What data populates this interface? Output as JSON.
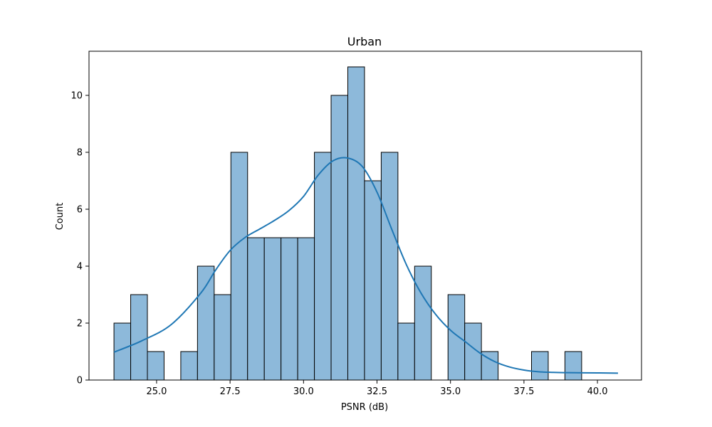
{
  "chart_data": {
    "type": "bar",
    "title": "Urban",
    "xlabel": "PSNR (dB)",
    "ylabel": "Count",
    "xlim": [
      22.7,
      41.5
    ],
    "ylim": [
      0,
      11.55
    ],
    "xticks": [
      25.0,
      27.5,
      30.0,
      32.5,
      35.0,
      37.5,
      40.0
    ],
    "yticks": [
      0,
      2,
      4,
      6,
      8,
      10
    ],
    "grid": false,
    "bin_start": 23.55,
    "bin_width": 0.5683,
    "counts": [
      2,
      3,
      1,
      0,
      1,
      4,
      3,
      8,
      5,
      5,
      5,
      5,
      8,
      10,
      11,
      7,
      8,
      2,
      4,
      0,
      3,
      2,
      1,
      0,
      0,
      1,
      0,
      1
    ],
    "kde": {
      "x": [
        23.55,
        24.5,
        25.5,
        26.5,
        27.0,
        27.5,
        28.0,
        28.5,
        29.0,
        29.5,
        30.0,
        30.5,
        31.0,
        31.5,
        32.0,
        32.5,
        33.0,
        33.5,
        34.0,
        34.5,
        35.0,
        35.5,
        36.0,
        36.5,
        37.0,
        37.5,
        38.0,
        38.5,
        39.0,
        40.0,
        40.7
      ],
      "y": [
        0.98,
        1.38,
        1.95,
        3.05,
        3.85,
        4.55,
        5.0,
        5.3,
        5.6,
        5.95,
        6.45,
        7.2,
        7.7,
        7.8,
        7.5,
        6.6,
        5.3,
        4.05,
        3.05,
        2.3,
        1.75,
        1.35,
        0.95,
        0.65,
        0.46,
        0.35,
        0.29,
        0.27,
        0.26,
        0.25,
        0.24
      ]
    },
    "bar_color": "#8db9da",
    "bar_edge": "#000000",
    "line_color": "#1f77b4"
  }
}
